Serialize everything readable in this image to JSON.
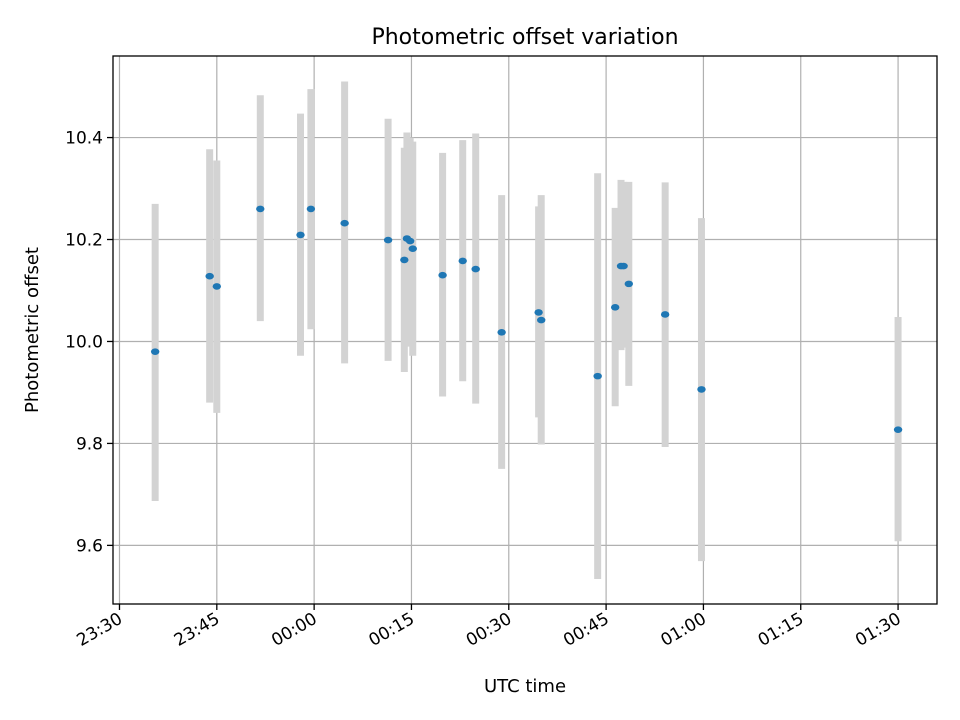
{
  "chart_data": {
    "type": "scatter",
    "title": "Photometric offset variation",
    "xlabel": "UTC time",
    "ylabel": "Photometric offset",
    "xlim_minutes": [
      -31,
      96
    ],
    "ylim": [
      9.485,
      10.56
    ],
    "x_ticks": [
      {
        "minute": -30,
        "label": "23:30"
      },
      {
        "minute": -15,
        "label": "23:45"
      },
      {
        "minute": 0,
        "label": "00:00"
      },
      {
        "minute": 15,
        "label": "00:15"
      },
      {
        "minute": 30,
        "label": "00:30"
      },
      {
        "minute": 45,
        "label": "00:45"
      },
      {
        "minute": 60,
        "label": "01:00"
      },
      {
        "minute": 75,
        "label": "01:15"
      },
      {
        "minute": 90,
        "label": "01:30"
      }
    ],
    "y_ticks": [
      {
        "value": 9.6,
        "label": "9.6"
      },
      {
        "value": 9.8,
        "label": "9.8"
      },
      {
        "value": 10.0,
        "label": "10.0"
      },
      {
        "value": 10.2,
        "label": "10.2"
      },
      {
        "value": 10.4,
        "label": "10.4"
      }
    ],
    "grid": true,
    "marker_color": "#1f77b4",
    "errorbar_color": "#d3d3d3",
    "points": [
      {
        "time": "23:35:30",
        "y": 9.98,
        "ylow": 9.687,
        "yhigh": 10.27
      },
      {
        "time": "23:43:54",
        "y": 10.128,
        "ylow": 9.88,
        "yhigh": 10.377
      },
      {
        "time": "23:45:00",
        "y": 10.108,
        "ylow": 9.86,
        "yhigh": 10.355
      },
      {
        "time": "23:51:42",
        "y": 10.26,
        "ylow": 10.04,
        "yhigh": 10.483
      },
      {
        "time": "23:57:54",
        "y": 10.209,
        "ylow": 9.972,
        "yhigh": 10.447
      },
      {
        "time": "23:59:30",
        "y": 10.26,
        "ylow": 10.024,
        "yhigh": 10.495
      },
      {
        "time": "00:04:42",
        "y": 10.232,
        "ylow": 9.957,
        "yhigh": 10.51
      },
      {
        "time": "00:11:24",
        "y": 10.199,
        "ylow": 9.962,
        "yhigh": 10.437
      },
      {
        "time": "00:13:54",
        "y": 10.16,
        "ylow": 9.94,
        "yhigh": 10.38
      },
      {
        "time": "00:14:18",
        "y": 10.202,
        "ylow": 9.99,
        "yhigh": 10.41
      },
      {
        "time": "00:14:48",
        "y": 10.197,
        "ylow": 10.0,
        "yhigh": 10.4
      },
      {
        "time": "00:15:12",
        "y": 10.182,
        "ylow": 9.972,
        "yhigh": 10.392
      },
      {
        "time": "00:19:48",
        "y": 10.13,
        "ylow": 9.892,
        "yhigh": 10.37
      },
      {
        "time": "00:22:54",
        "y": 10.158,
        "ylow": 9.922,
        "yhigh": 10.395
      },
      {
        "time": "00:24:54",
        "y": 10.142,
        "ylow": 9.878,
        "yhigh": 10.408
      },
      {
        "time": "00:28:54",
        "y": 10.018,
        "ylow": 9.75,
        "yhigh": 10.287
      },
      {
        "time": "00:34:36",
        "y": 10.057,
        "ylow": 9.851,
        "yhigh": 10.265
      },
      {
        "time": "00:35:00",
        "y": 10.042,
        "ylow": 9.798,
        "yhigh": 10.287
      },
      {
        "time": "00:43:42",
        "y": 9.932,
        "ylow": 9.534,
        "yhigh": 10.33
      },
      {
        "time": "00:46:24",
        "y": 10.067,
        "ylow": 9.873,
        "yhigh": 10.262
      },
      {
        "time": "00:47:18",
        "y": 10.148,
        "ylow": 9.983,
        "yhigh": 10.317
      },
      {
        "time": "00:47:42",
        "y": 10.148,
        "ylow": 9.988,
        "yhigh": 10.313
      },
      {
        "time": "00:48:30",
        "y": 10.113,
        "ylow": 9.913,
        "yhigh": 10.313
      },
      {
        "time": "00:54:06",
        "y": 10.053,
        "ylow": 9.793,
        "yhigh": 10.312
      },
      {
        "time": "00:59:42",
        "y": 9.906,
        "ylow": 9.569,
        "yhigh": 10.242
      },
      {
        "time": "01:30:00",
        "y": 9.827,
        "ylow": 9.608,
        "yhigh": 10.048
      }
    ]
  }
}
